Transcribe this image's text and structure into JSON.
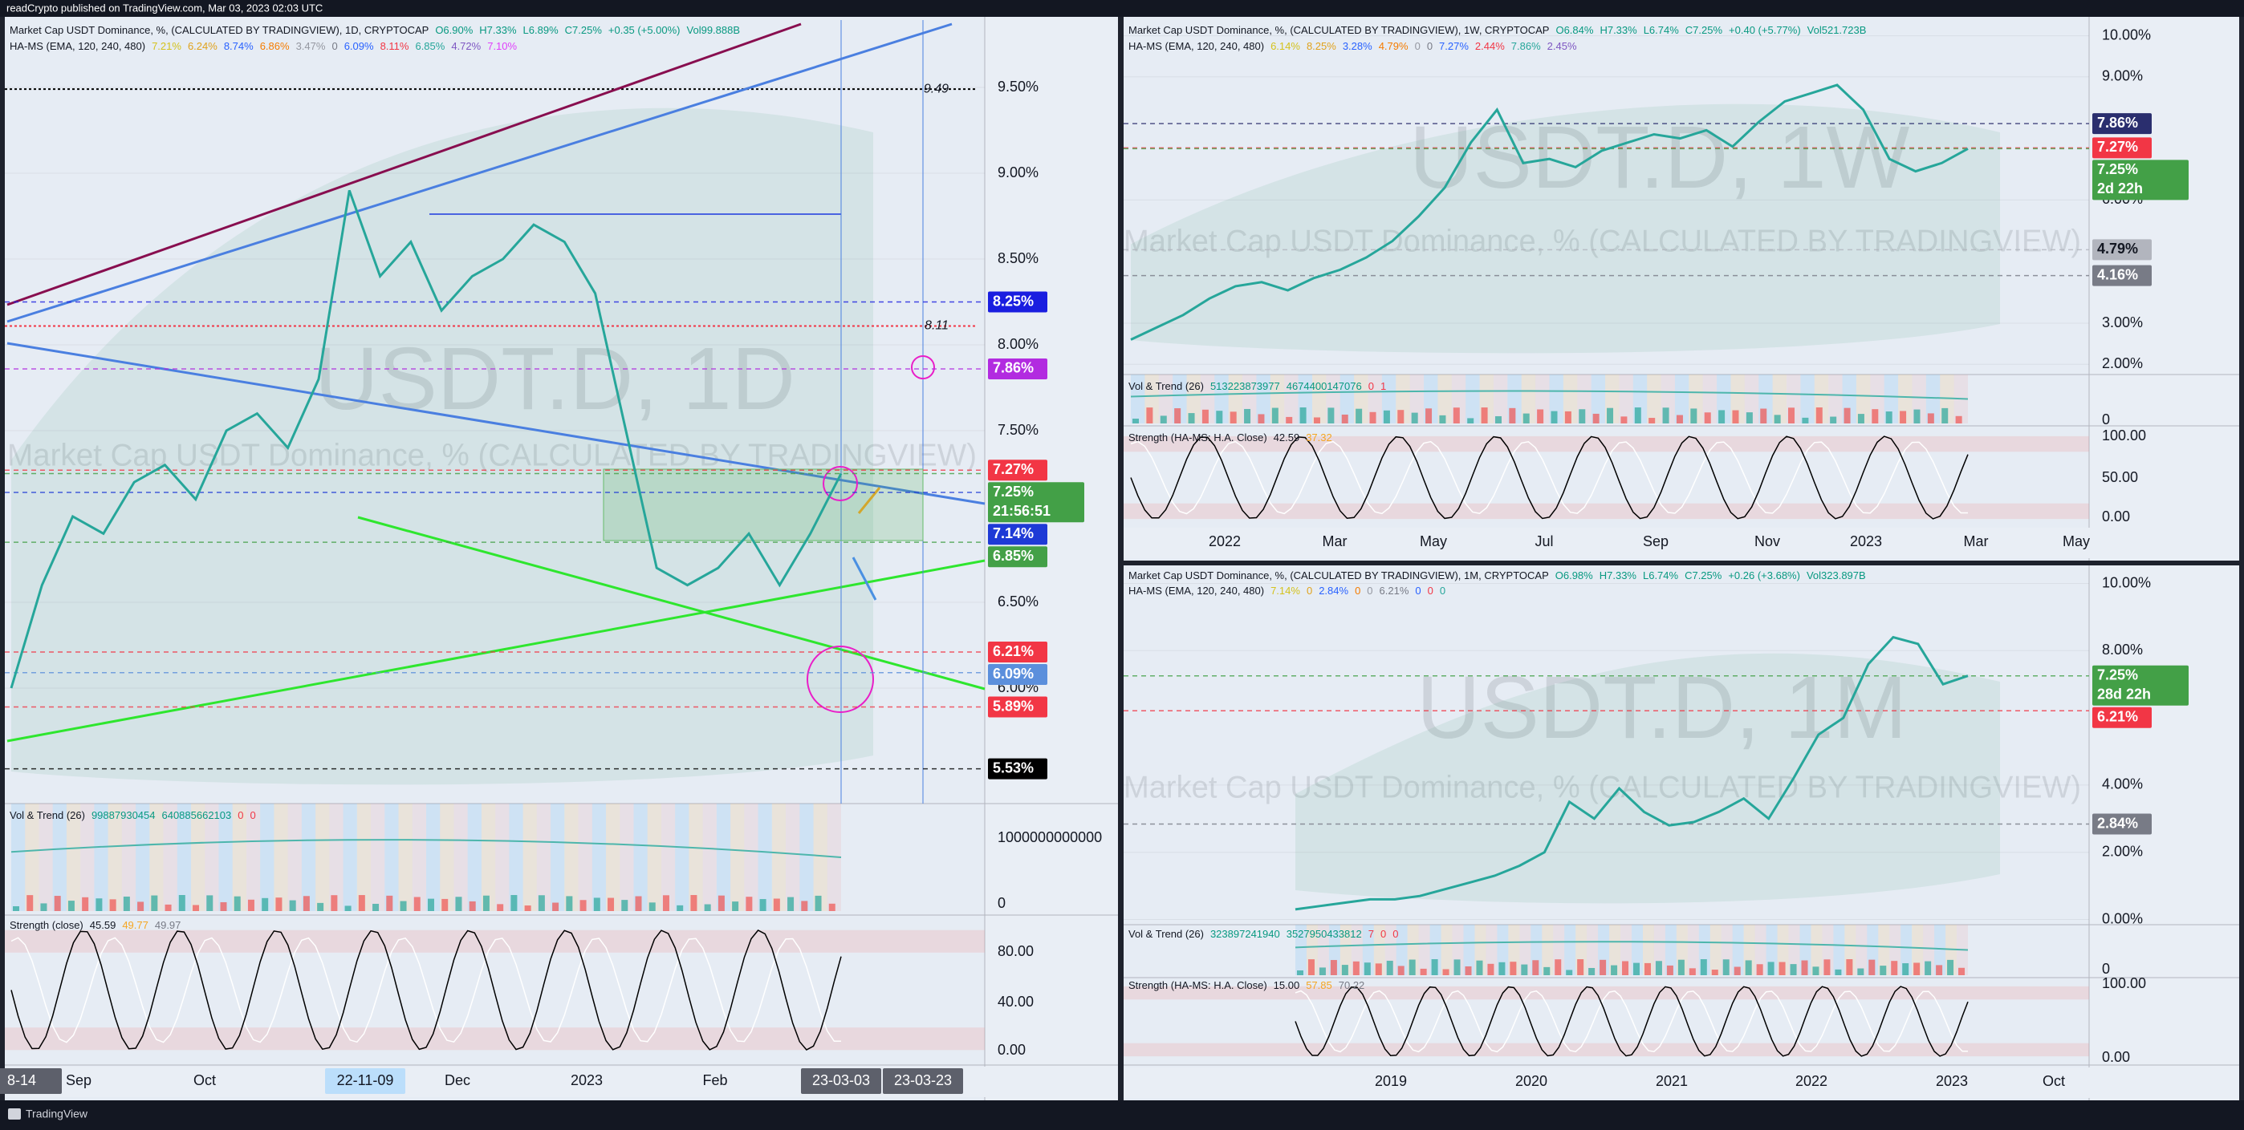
{
  "top_bar": "readCrypto published on TradingView.com, Mar 03, 2023 02:03 UTC",
  "footer": "TradingView",
  "panels": [
    {
      "header": {
        "title": "Market Cap USDT Dominance, %, (CALCULATED BY TRADINGVIEW), 1D, CRYPTOCAP",
        "ohlc": [
          "O6.90%",
          "H7.33%",
          "L6.89%",
          "C7.25%",
          "+0.35 (+5.00%)",
          "Vol99.888B"
        ],
        "indicator": "HA-MS (EMA, 120, 240, 480)",
        "indicator_values": [
          "7.21%",
          "6.24%",
          "8.74%",
          "6.86%",
          "3.47%",
          "0",
          "6.09%",
          "8.11%",
          "6.85%",
          "4.72%",
          "7.10%"
        ]
      },
      "watermark": "USDT.D, 1D",
      "watermark_sub": "Market Cap USDT Dominance, % (CALCULATED BY TRADINGVIEW)",
      "yticks": [
        {
          "value": 9.5,
          "label": "9.50%"
        },
        {
          "value": 9,
          "label": "9.00%"
        },
        {
          "value": 8.5,
          "label": "8.50%"
        },
        {
          "value": 8,
          "label": "8.00%"
        },
        {
          "value": 7.5,
          "label": "7.50%"
        },
        {
          "value": 6.5,
          "label": "6.50%"
        },
        {
          "value": 6,
          "label": "6.00%"
        }
      ],
      "price_tags": [
        {
          "value": 8.25,
          "label": "8.25%",
          "color": "#1a1ee0"
        },
        {
          "value": 7.86,
          "label": "7.86%",
          "color": "#b22be0"
        },
        {
          "value": 7.27,
          "label": "7.27%",
          "color": "#f23645"
        },
        {
          "value": 7.25,
          "label": "7.25%",
          "sub": "21:56:51",
          "color": "#43a047"
        },
        {
          "value": 7.14,
          "label": "7.14%",
          "color": "#1e3ad6"
        },
        {
          "value": 6.85,
          "label": "6.85%",
          "color": "#43a047"
        },
        {
          "value": 6.21,
          "label": "6.21%",
          "color": "#f23645"
        },
        {
          "value": 6.09,
          "label": "6.09%",
          "color": "#5b8fdc"
        },
        {
          "value": 5.89,
          "label": "5.89%",
          "color": "#f23645"
        },
        {
          "value": 5.53,
          "label": "5.53%",
          "color": "#000000"
        }
      ],
      "annotations": [
        9.49,
        8.11
      ],
      "close": [
        6.0,
        6.6,
        7.0,
        6.9,
        7.2,
        7.3,
        7.1,
        7.5,
        7.6,
        7.4,
        7.8,
        8.9,
        8.4,
        8.6,
        8.2,
        8.4,
        8.5,
        8.7,
        8.6,
        8.3,
        7.5,
        6.7,
        6.6,
        6.7,
        6.9,
        6.6,
        6.9,
        7.25
      ],
      "line_color": "#26a69a",
      "time_axis": [
        {
          "label": "8-14",
          "tag": true
        },
        {
          "label": "Sep"
        },
        {
          "label": "Oct"
        },
        {
          "label": "22-11-09",
          "tag": true
        },
        {
          "label": "Dec"
        },
        {
          "label": "2023"
        },
        {
          "label": "Feb"
        },
        {
          "label": "23-03-03",
          "tag": true
        },
        {
          "label": "23-03-23",
          "tag": true
        }
      ],
      "volume": {
        "title": "Vol & Trend (26)",
        "values": [
          "99887930454",
          "640885662103",
          "0",
          "0"
        ],
        "axis": [
          "1000000000000",
          "0"
        ]
      },
      "strength": {
        "title": "Strength (close)",
        "values": [
          "45.59",
          "49.77",
          "49.97"
        ],
        "axis": [
          "80.00",
          "40.00",
          "0.00"
        ]
      }
    },
    {
      "header": {
        "title": "Market Cap USDT Dominance, %, (CALCULATED BY TRADINGVIEW), 1W, CRYPTOCAP",
        "ohlc": [
          "O6.84%",
          "H7.33%",
          "L6.74%",
          "C7.25%",
          "+0.40 (+5.77%)",
          "Vol521.723B"
        ],
        "indicator": "HA-MS (EMA, 120, 240, 480)",
        "indicator_values": [
          "6.14%",
          "8.25%",
          "3.28%",
          "4.79%",
          "0",
          "0",
          "7.27%",
          "2.44%",
          "7.86%",
          "2.45%"
        ]
      },
      "watermark": "USDT.D, 1W",
      "watermark_sub": "Market Cap USDT Dominance, % (CALCULATED BY TRADINGVIEW)",
      "yticks": [
        {
          "value": 10,
          "label": "10.00%"
        },
        {
          "value": 9,
          "label": "9.00%"
        },
        {
          "value": 6,
          "label": "6.00%"
        },
        {
          "value": 3,
          "label": "3.00%"
        },
        {
          "value": 2,
          "label": "2.00%"
        }
      ],
      "price_tags": [
        {
          "value": 7.86,
          "label": "7.86%",
          "color": "#2a2e6e"
        },
        {
          "value": 7.27,
          "label": "7.27%",
          "color": "#f23645"
        },
        {
          "value": 7.25,
          "label": "7.25%",
          "sub": "2d 22h",
          "color": "#43a047"
        },
        {
          "value": 4.79,
          "label": "4.79%",
          "color": "#b2b5be",
          "dark_text": true
        },
        {
          "value": 4.16,
          "label": "4.16%",
          "color": "#787b86"
        }
      ],
      "annotations": [],
      "close": [
        2.6,
        2.9,
        3.2,
        3.6,
        3.9,
        4.0,
        3.8,
        4.1,
        4.3,
        4.6,
        5.0,
        5.6,
        6.3,
        7.4,
        8.2,
        6.9,
        7.0,
        6.8,
        7.2,
        7.4,
        7.6,
        7.5,
        7.7,
        7.3,
        7.9,
        8.4,
        8.6,
        8.8,
        8.2,
        7.0,
        6.7,
        6.9,
        7.25
      ],
      "line_color": "#26a69a",
      "time_axis": [
        {
          "label": "2022"
        },
        {
          "label": "Mar"
        },
        {
          "label": "May"
        },
        {
          "label": "Jul"
        },
        {
          "label": "Sep"
        },
        {
          "label": "Nov"
        },
        {
          "label": "2023"
        },
        {
          "label": "Mar"
        },
        {
          "label": "May"
        }
      ],
      "volume": {
        "title": "Vol & Trend (26)",
        "values": [
          "513223873977",
          "4674400147076",
          "0",
          "1"
        ],
        "axis": [
          "0"
        ]
      },
      "strength": {
        "title": "Strength (HA-MS: H.A. Close)",
        "values": [
          "42.59",
          "37.32"
        ],
        "axis": [
          "100.00",
          "50.00",
          "0.00"
        ]
      }
    },
    {
      "header": {
        "title": "Market Cap USDT Dominance, %, (CALCULATED BY TRADINGVIEW), 1M, CRYPTOCAP",
        "ohlc": [
          "O6.98%",
          "H7.33%",
          "L6.74%",
          "C7.25%",
          "+0.26 (+3.68%)",
          "Vol323.897B"
        ],
        "indicator": "HA-MS (EMA, 120, 240, 480)",
        "indicator_values": [
          "7.14%",
          "0",
          "2.84%",
          "0",
          "0",
          "6.21%",
          "0",
          "0",
          "0"
        ]
      },
      "watermark": "USDT.D, 1M",
      "watermark_sub": "Market Cap USDT Dominance, % (CALCULATED BY TRADINGVIEW)",
      "yticks": [
        {
          "value": 10,
          "label": "10.00%"
        },
        {
          "value": 8,
          "label": "8.00%"
        },
        {
          "value": 4,
          "label": "4.00%"
        },
        {
          "value": 2,
          "label": "2.00%"
        },
        {
          "value": 0,
          "label": "0.00%"
        }
      ],
      "price_tags": [
        {
          "value": 7.25,
          "label": "7.25%",
          "sub": "28d 22h",
          "color": "#43a047"
        },
        {
          "value": 6.21,
          "label": "6.21%",
          "color": "#f23645"
        },
        {
          "value": 2.84,
          "label": "2.84%",
          "color": "#787b86"
        }
      ],
      "annotations": [],
      "close": [
        0.3,
        0.4,
        0.5,
        0.6,
        0.6,
        0.7,
        0.9,
        1.1,
        1.3,
        1.6,
        2.0,
        3.5,
        3.0,
        3.9,
        3.2,
        2.8,
        2.9,
        3.2,
        3.6,
        3.0,
        4.2,
        5.5,
        6.0,
        7.6,
        8.4,
        8.2,
        7.0,
        7.25
      ],
      "line_color": "#26a69a",
      "time_axis": [
        {
          "label": "2019"
        },
        {
          "label": "2020"
        },
        {
          "label": "2021"
        },
        {
          "label": "2022"
        },
        {
          "label": "2023"
        },
        {
          "label": "Oct"
        }
      ],
      "volume": {
        "title": "Vol & Trend (26)",
        "values": [
          "323897241940",
          "3527950433812",
          "7",
          "0",
          "0"
        ],
        "axis": [
          "0"
        ]
      },
      "strength": {
        "title": "Strength (HA-MS: H.A. Close)",
        "values": [
          "15.00",
          "57.85",
          "70.22"
        ],
        "axis": [
          "100.00",
          "0.00"
        ]
      }
    }
  ]
}
